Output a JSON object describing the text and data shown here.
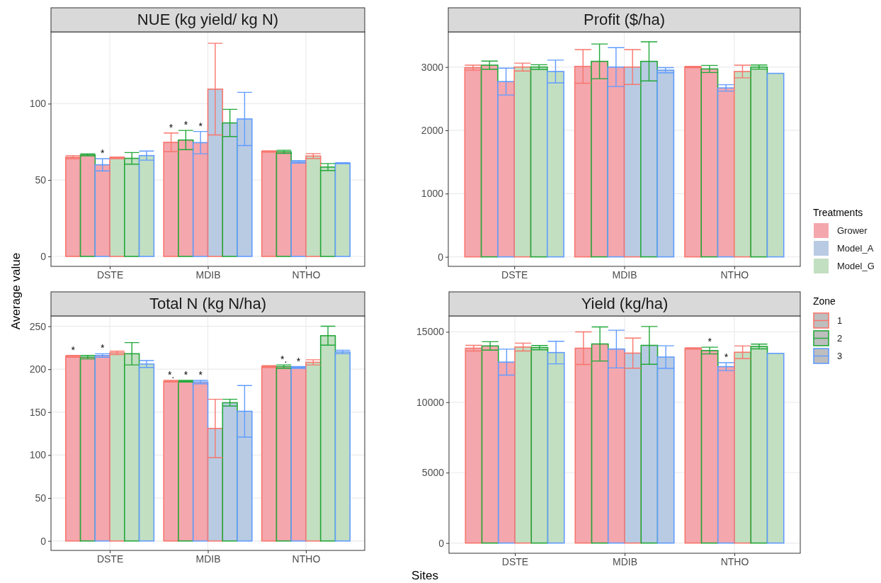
{
  "chart_data": [
    {
      "type": "bar",
      "title": "NUE (kg yield/ kg N)",
      "categories": [
        "DSTE",
        "MDIB",
        "NTHO"
      ],
      "ylim": [
        -6.5,
        147
      ],
      "yticks": [
        0,
        50,
        100
      ],
      "grid": true,
      "series": [
        {
          "color": "#f8766d",
          "colors": [
            "#f4a7ad",
            "#f4a7ad",
            "#f4a7ad"
          ],
          "values": [
            65,
            74.7,
            68.7
          ],
          "errors": [
            1,
            6.1,
            0.4
          ],
          "value_labels": [
            null,
            "*",
            null
          ]
        },
        {
          "color": "#22a83a",
          "colors": [
            "#f4a7ad",
            "#f4a7ad",
            "#f4a7ad"
          ],
          "values": [
            66.5,
            76.2,
            68.5
          ],
          "errors": [
            0.7,
            6.3,
            1
          ],
          "value_labels": [
            null,
            "*",
            null
          ]
        },
        {
          "color": "#619cff",
          "colors": [
            "#f4a7ad",
            "#f4a7ad",
            "#f4a7ad"
          ],
          "values": [
            60,
            74.5,
            61.9
          ],
          "errors": [
            4,
            7.3,
            0.8
          ],
          "value_labels": [
            "*",
            "*",
            null
          ]
        },
        {
          "color": "#f8766d",
          "colors": [
            "#c2dfc2",
            "#b8cbe3",
            "#c2dfc2"
          ],
          "values": [
            64.5,
            109.5,
            65.7
          ],
          "errors": [
            0.5,
            30,
            1.6
          ]
        },
        {
          "color": "#22a83a",
          "colors": [
            "#c2dfc2",
            "#b8cbe3",
            "#c2dfc2"
          ],
          "values": [
            64.2,
            87.4,
            58.5
          ],
          "errors": [
            3.8,
            8.9,
            2.3
          ]
        },
        {
          "color": "#619cff",
          "colors": [
            "#c2dfc2",
            "#b8cbe3",
            "#c2dfc2"
          ],
          "values": [
            66,
            90,
            61
          ],
          "errors": [
            3,
            17.4,
            0.3
          ]
        }
      ]
    },
    {
      "type": "bar",
      "title": "Profit ($/ha)",
      "categories": [
        "DSTE",
        "MDIB",
        "NTHO"
      ],
      "ylim": [
        -150,
        3556
      ],
      "yticks": [
        0,
        1000,
        2000,
        3000
      ],
      "grid": true,
      "legend": "right",
      "legend_title": "Zone",
      "series": [
        {
          "name": "1",
          "color": "#f8766d",
          "colors": [
            "#f4a7ad",
            "#f4a7ad",
            "#f4a7ad"
          ],
          "values": [
            2990,
            3010,
            3000
          ],
          "errors": [
            40,
            266,
            10
          ]
        },
        {
          "name": "2",
          "color": "#22a83a",
          "colors": [
            "#f4a7ad",
            "#f4a7ad",
            "#f4a7ad"
          ],
          "values": [
            3030,
            3090,
            2970
          ],
          "errors": [
            64,
            274,
            56
          ]
        },
        {
          "name": "3",
          "color": "#619cff",
          "colors": [
            "#f4a7ad",
            "#f4a7ad",
            "#f4a7ad"
          ],
          "values": [
            2770,
            3000,
            2670
          ],
          "errors": [
            212,
            307,
            50
          ]
        },
        {
          "color": "#f8766d",
          "colors": [
            "#c2dfc2",
            "#b8cbe3",
            "#c2dfc2"
          ],
          "values": [
            3000,
            3000,
            2930
          ],
          "errors": [
            62,
            276,
            100
          ]
        },
        {
          "color": "#22a83a",
          "colors": [
            "#c2dfc2",
            "#b8cbe3",
            "#c2dfc2"
          ],
          "values": [
            3000,
            3090,
            3000
          ],
          "errors": [
            37,
            310,
            33
          ]
        },
        {
          "color": "#619cff",
          "colors": [
            "#c2dfc2",
            "#b8cbe3",
            "#c2dfc2"
          ],
          "values": [
            2930,
            2950,
            2900
          ],
          "errors": [
            180,
            40,
            null
          ]
        }
      ]
    },
    {
      "type": "bar",
      "title": "Total N (kg N/ha)",
      "xlabel": "Sites",
      "ylabel": "Average value",
      "categories": [
        "DSTE",
        "MDIB",
        "NTHO"
      ],
      "ylim": [
        -11,
        262
      ],
      "yticks": [
        0,
        50,
        100,
        150,
        200,
        250
      ],
      "grid": true,
      "series": [
        {
          "color": "#f8766d",
          "colors": [
            "#f4a7ad",
            "#f4a7ad",
            "#f4a7ad"
          ],
          "values": [
            215,
            186,
            203
          ],
          "errors": [
            1,
            1,
            1
          ],
          "value_labels": [
            "*",
            "*.",
            null
          ]
        },
        {
          "color": "#22a83a",
          "colors": [
            "#f4a7ad",
            "#f4a7ad",
            "#f4a7ad"
          ],
          "values": [
            214,
            186,
            203
          ],
          "errors": [
            2,
            1,
            2
          ],
          "value_labels": [
            null,
            "*",
            "*."
          ]
        },
        {
          "color": "#619cff",
          "colors": [
            "#f4a7ad",
            "#f4a7ad",
            "#f4a7ad"
          ],
          "values": [
            216,
            185,
            202
          ],
          "errors": [
            2,
            2,
            1
          ],
          "value_labels": [
            "*",
            "*",
            "*"
          ]
        },
        {
          "color": "#f8766d",
          "colors": [
            "#c2dfc2",
            "#b8cbe3",
            "#c2dfc2"
          ],
          "values": [
            219,
            131,
            208
          ],
          "errors": [
            2,
            34,
            3
          ]
        },
        {
          "color": "#22a83a",
          "colors": [
            "#c2dfc2",
            "#b8cbe3",
            "#c2dfc2"
          ],
          "values": [
            218,
            161,
            239
          ],
          "errors": [
            13,
            4,
            11
          ]
        },
        {
          "color": "#619cff",
          "colors": [
            "#c2dfc2",
            "#b8cbe3",
            "#c2dfc2"
          ],
          "values": [
            206,
            151,
            220
          ],
          "errors": [
            4,
            30,
            2
          ]
        }
      ]
    },
    {
      "type": "bar",
      "title": "Yield (kg/ha)",
      "categories": [
        "DSTE",
        "MDIB",
        "NTHO"
      ],
      "ylim": [
        -724,
        16130
      ],
      "yticks": [
        0,
        5000,
        10000,
        15000
      ],
      "grid": true,
      "series": [
        {
          "color": "#f8766d",
          "colors": [
            "#f4a7ad",
            "#f4a7ad",
            "#f4a7ad"
          ],
          "values": [
            13840,
            13840,
            13820
          ],
          "errors": [
            200,
            1160,
            50
          ]
        },
        {
          "color": "#22a83a",
          "colors": [
            "#f4a7ad",
            "#f4a7ad",
            "#f4a7ad"
          ],
          "values": [
            14000,
            14140,
            13670
          ],
          "errors": [
            300,
            1210,
            240
          ],
          "value_labels": [
            null,
            null,
            "*"
          ]
        },
        {
          "color": "#619cff",
          "colors": [
            "#f4a7ad",
            "#f4a7ad",
            "#f4a7ad"
          ],
          "values": [
            12850,
            13780,
            12530
          ],
          "errors": [
            920,
            1340,
            280
          ],
          "value_labels": [
            null,
            null,
            "*"
          ]
        },
        {
          "color": "#f8766d",
          "colors": [
            "#c2dfc2",
            "#b8cbe3",
            "#c2dfc2"
          ],
          "values": [
            13920,
            13490,
            13550
          ],
          "errors": [
            280,
            1070,
            450
          ]
        },
        {
          "color": "#22a83a",
          "colors": [
            "#c2dfc2",
            "#b8cbe3",
            "#c2dfc2"
          ],
          "values": [
            13880,
            14040,
            13960
          ],
          "errors": [
            150,
            1340,
            170
          ]
        },
        {
          "color": "#619cff",
          "colors": [
            "#c2dfc2",
            "#b8cbe3",
            "#c2dfc2"
          ],
          "values": [
            13530,
            13210,
            13470
          ],
          "errors": [
            800,
            800,
            null
          ]
        }
      ]
    },
    {
      "type": "other",
      "legend_title": "Treatments",
      "categories": [
        "Grower",
        "Model_A",
        "Model_G"
      ],
      "colors": [
        "#f4a7ad",
        "#b8cbe3",
        "#c2dfc2"
      ]
    }
  ]
}
